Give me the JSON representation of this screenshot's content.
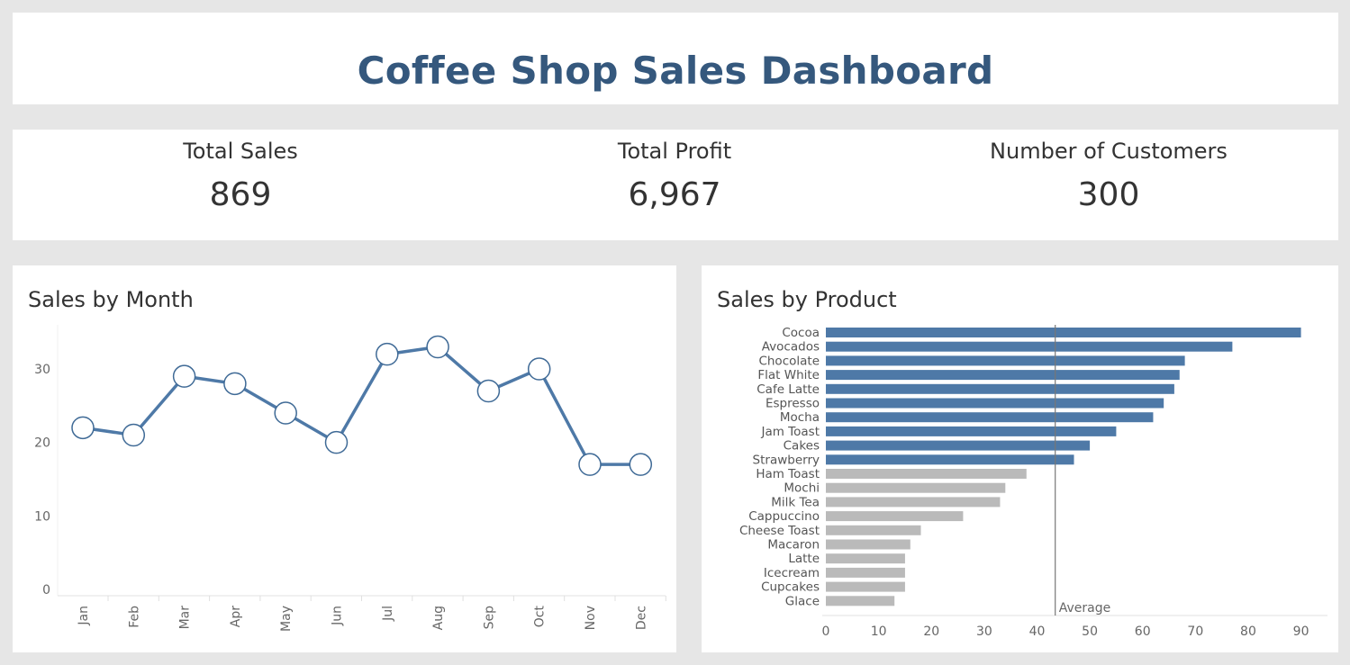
{
  "header": {
    "title": "Coffee Shop Sales Dashboard"
  },
  "kpis": [
    {
      "label": "Total Sales",
      "value": "869"
    },
    {
      "label": "Total Profit",
      "value": "6,967"
    },
    {
      "label": "Number of Customers",
      "value": "300"
    }
  ],
  "colors": {
    "primary": "#4e79a7",
    "highlight_bar": "#4e79a7",
    "muted_bar": "#bababa",
    "title": "#35587d",
    "axis_text": "#666666"
  },
  "chart_data": [
    {
      "type": "line",
      "title": "Sales by Month",
      "x": [
        "Jan",
        "Feb",
        "Mar",
        "Apr",
        "May",
        "Jun",
        "Jul",
        "Aug",
        "Sep",
        "Oct",
        "Nov",
        "Dec"
      ],
      "series": [
        {
          "values": [
            22,
            21,
            29,
            28,
            24,
            20,
            32,
            33,
            27,
            30,
            17,
            17
          ]
        }
      ],
      "yticks": [
        0,
        10,
        20,
        30
      ],
      "ylim": [
        0,
        36
      ],
      "xlabel": "",
      "ylabel": "",
      "grid": false,
      "markers": "hollow-circle"
    },
    {
      "type": "bar",
      "orientation": "horizontal",
      "title": "Sales by Product",
      "categories": [
        "Cocoa",
        "Avocados",
        "Chocolate",
        "Flat White",
        "Cafe Latte",
        "Espresso",
        "Mocha",
        "Jam Toast",
        "Cakes",
        "Strawberry",
        "Ham Toast",
        "Mochi",
        "Milk Tea",
        "Cappuccino",
        "Cheese Toast",
        "Macaron",
        "Latte",
        "Icecream",
        "Cupcakes",
        "Glace"
      ],
      "values": [
        90,
        77,
        68,
        67,
        66,
        64,
        62,
        55,
        50,
        47,
        38,
        34,
        33,
        26,
        18,
        16,
        15,
        15,
        15,
        13
      ],
      "above_average": [
        true,
        true,
        true,
        true,
        true,
        true,
        true,
        true,
        true,
        true,
        false,
        false,
        false,
        false,
        false,
        false,
        false,
        false,
        false,
        false
      ],
      "xticks": [
        0,
        10,
        20,
        30,
        40,
        50,
        60,
        70,
        80,
        90
      ],
      "xlim": [
        0,
        94
      ],
      "reference_line": {
        "label": "Average",
        "value": 43.45
      },
      "xlabel": "",
      "ylabel": ""
    }
  ]
}
